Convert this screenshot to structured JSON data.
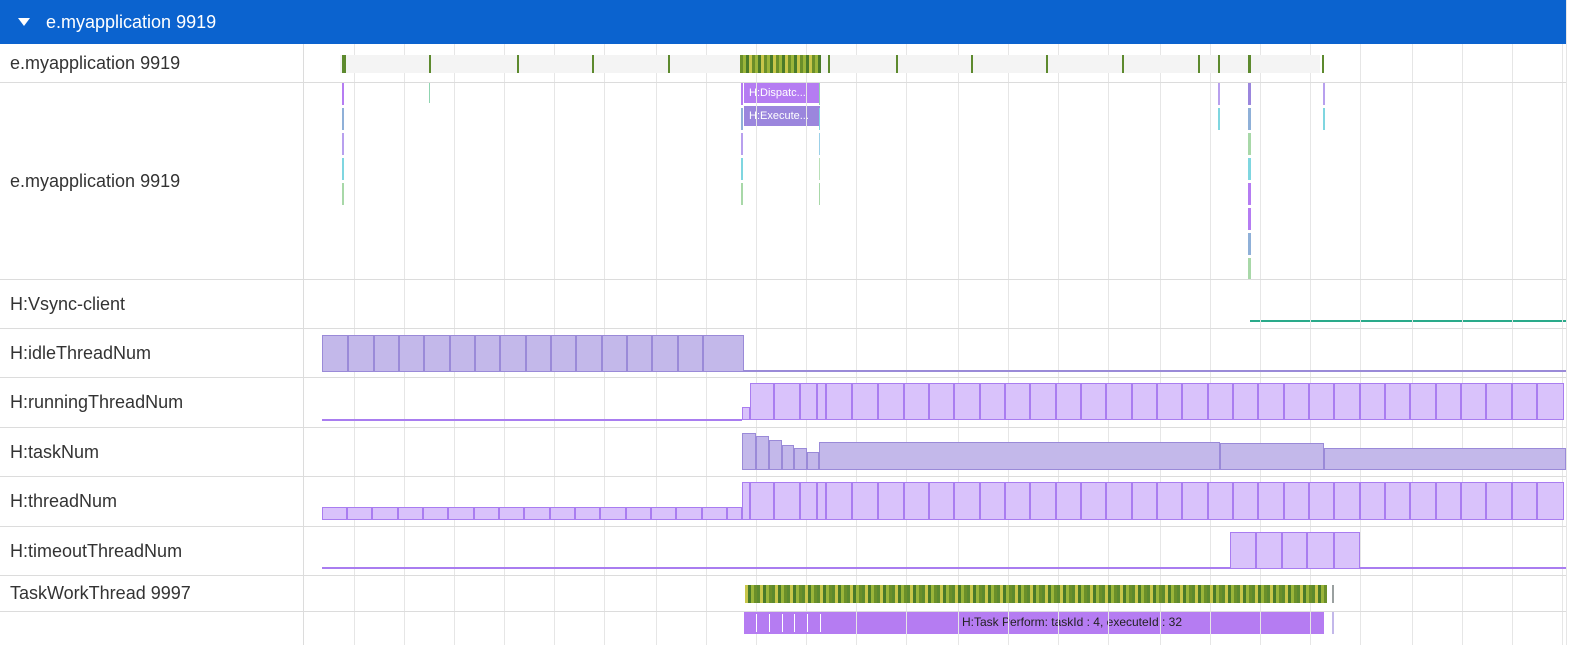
{
  "header": {
    "title": "e.myapplication 9919"
  },
  "lanes": [
    {
      "label": "e.myapplication 9919"
    },
    {
      "label": "e.myapplication 9919"
    },
    {
      "label": "H:Vsync-client"
    },
    {
      "label": "H:idleThreadNum"
    },
    {
      "label": "H:runningThreadNum"
    },
    {
      "label": "H:taskNum"
    },
    {
      "label": "H:threadNum"
    },
    {
      "label": "H:timeoutThreadNum"
    },
    {
      "label": "TaskWorkThread 9997"
    }
  ],
  "slices": {
    "dispatch": "H:Dispatc...",
    "execute": "H:Execute...",
    "task_perform": "H:Task Perform: taskId : 4, executeId : 32"
  },
  "colors": {
    "header_bg": "#0b63cf",
    "counter_fill": "#c3b8ea",
    "counter_stroke": "#9a8ad8",
    "running_fill": "#d9c2fb",
    "running_stroke": "#a97df0",
    "slice_purple": "#b57cf2",
    "slice_violet": "#9b86dd",
    "vsync": "#2aaa8a",
    "cpu_green": "#5d8a2e"
  }
}
